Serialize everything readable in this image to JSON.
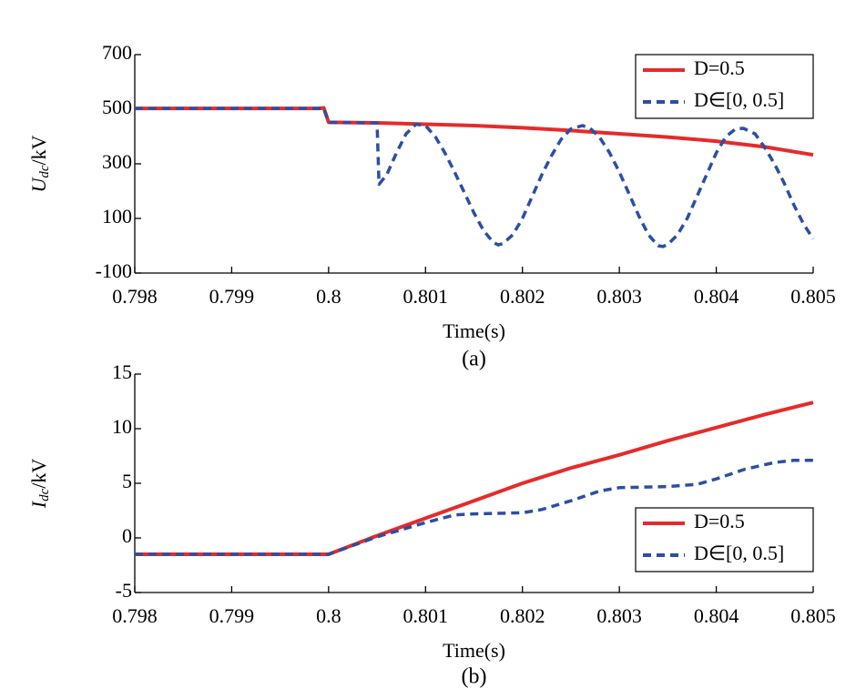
{
  "chart_data": [
    {
      "type": "line",
      "subtitle": "(a)",
      "xlabel": "Time(s)",
      "ylabel": [
        "U",
        "dc",
        "/kV"
      ],
      "xlim": [
        0.798,
        0.805
      ],
      "xticks": [
        0.798,
        0.799,
        0.8,
        0.801,
        0.802,
        0.803,
        0.804,
        0.805
      ],
      "ylim": [
        -100,
        700
      ],
      "yticks": [
        -100,
        100,
        300,
        500,
        700
      ],
      "legend": "upper right",
      "series": [
        {
          "name": "D=0.5",
          "color": "#e52b2b",
          "linestyle": "solid",
          "x": [
            0.798,
            0.799,
            0.7999,
            0.79995,
            0.8,
            0.8005,
            0.801,
            0.8015,
            0.802,
            0.8025,
            0.803,
            0.8035,
            0.804,
            0.8045,
            0.805
          ],
          "values": [
            503,
            503,
            503,
            505,
            452,
            450,
            445,
            440,
            432,
            422,
            410,
            398,
            383,
            362,
            333
          ]
        },
        {
          "name": "D∈[0, 0.5]",
          "color": "#2b4fa2",
          "linestyle": "dashed",
          "x": [
            0.798,
            0.7999,
            0.79995,
            0.8,
            0.8005,
            0.80052,
            0.8006,
            0.8007,
            0.8008,
            0.8009,
            0.801,
            0.8011,
            0.8012,
            0.8013,
            0.8014,
            0.8015,
            0.8016,
            0.8017,
            0.80175,
            0.8018,
            0.8019,
            0.802,
            0.8021,
            0.8022,
            0.8023,
            0.8024,
            0.8025,
            0.80262,
            0.8027,
            0.8028,
            0.8029,
            0.803,
            0.8031,
            0.8032,
            0.8033,
            0.8034,
            0.80345,
            0.8035,
            0.8036,
            0.8037,
            0.8038,
            0.8039,
            0.804,
            0.8041,
            0.8042,
            0.80428,
            0.8044,
            0.8045,
            0.8046,
            0.8047,
            0.8048,
            0.8049,
            0.805
          ],
          "values": [
            503,
            503,
            505,
            452,
            450,
            225,
            260,
            340,
            410,
            445,
            440,
            400,
            340,
            270,
            195,
            120,
            55,
            12,
            3,
            8,
            40,
            100,
            180,
            260,
            330,
            390,
            428,
            440,
            430,
            395,
            340,
            270,
            190,
            110,
            40,
            0,
            -3,
            5,
            40,
            100,
            180,
            260,
            340,
            400,
            428,
            430,
            410,
            360,
            300,
            230,
            150,
            80,
            25
          ]
        }
      ]
    },
    {
      "type": "line",
      "subtitle": "(b)",
      "xlabel": "Time(s)",
      "ylabel": [
        "I",
        "dc",
        "/kV"
      ],
      "xlim": [
        0.798,
        0.805
      ],
      "xticks": [
        0.798,
        0.799,
        0.8,
        0.801,
        0.802,
        0.803,
        0.804,
        0.805
      ],
      "ylim": [
        -5,
        15
      ],
      "yticks": [
        -5,
        0,
        5,
        10,
        15
      ],
      "legend": "lower right",
      "series": [
        {
          "name": "D=0.5",
          "color": "#e52b2b",
          "linestyle": "solid",
          "x": [
            0.798,
            0.8,
            0.8005,
            0.801,
            0.8015,
            0.802,
            0.8025,
            0.803,
            0.8035,
            0.804,
            0.8045,
            0.805
          ],
          "values": [
            -1.5,
            -1.5,
            0.2,
            1.8,
            3.4,
            5.0,
            6.4,
            7.6,
            8.9,
            10.1,
            11.3,
            12.4
          ]
        },
        {
          "name": "D∈[0, 0.5]",
          "color": "#2b4fa2",
          "linestyle": "dashed",
          "x": [
            0.798,
            0.8,
            0.8005,
            0.801,
            0.8013,
            0.8015,
            0.802,
            0.8022,
            0.8025,
            0.8028,
            0.803,
            0.8035,
            0.8038,
            0.804,
            0.8043,
            0.8046,
            0.8048,
            0.805
          ],
          "values": [
            -1.5,
            -1.5,
            0.1,
            1.4,
            2.1,
            2.2,
            2.3,
            2.6,
            3.4,
            4.3,
            4.6,
            4.7,
            4.9,
            5.4,
            6.3,
            6.9,
            7.1,
            7.1
          ]
        }
      ]
    }
  ]
}
